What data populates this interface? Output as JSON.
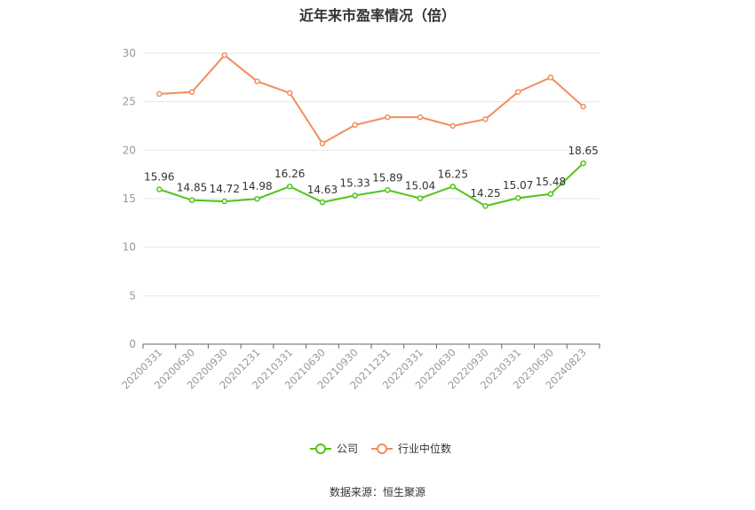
{
  "title": "近年来市盈率情况（倍）",
  "source": "数据来源：恒生聚源",
  "chart_data": {
    "type": "line",
    "title": "近年来市盈率情况（倍）",
    "categories": [
      "20200331",
      "20200630",
      "20200930",
      "20201231",
      "20210331",
      "20210630",
      "20210930",
      "20211231",
      "20220331",
      "20220630",
      "20220930",
      "20230331",
      "20230630",
      "20240823"
    ],
    "ylim": [
      0,
      30
    ],
    "yticks": [
      0,
      5,
      10,
      15,
      20,
      25,
      30
    ],
    "grid": true,
    "legend_position": "bottom",
    "series": [
      {
        "name": "公司",
        "color": "#52c41a",
        "show_labels": true,
        "values": [
          15.96,
          14.85,
          14.72,
          14.98,
          16.26,
          14.63,
          15.33,
          15.89,
          15.04,
          16.25,
          14.25,
          15.07,
          15.48,
          18.65
        ]
      },
      {
        "name": "行业中位数",
        "color": "#f28e5c",
        "show_labels": false,
        "values": [
          25.8,
          26.0,
          29.8,
          27.1,
          25.9,
          20.7,
          22.6,
          23.4,
          23.4,
          22.5,
          23.2,
          26.0,
          27.5,
          24.5
        ]
      }
    ]
  }
}
